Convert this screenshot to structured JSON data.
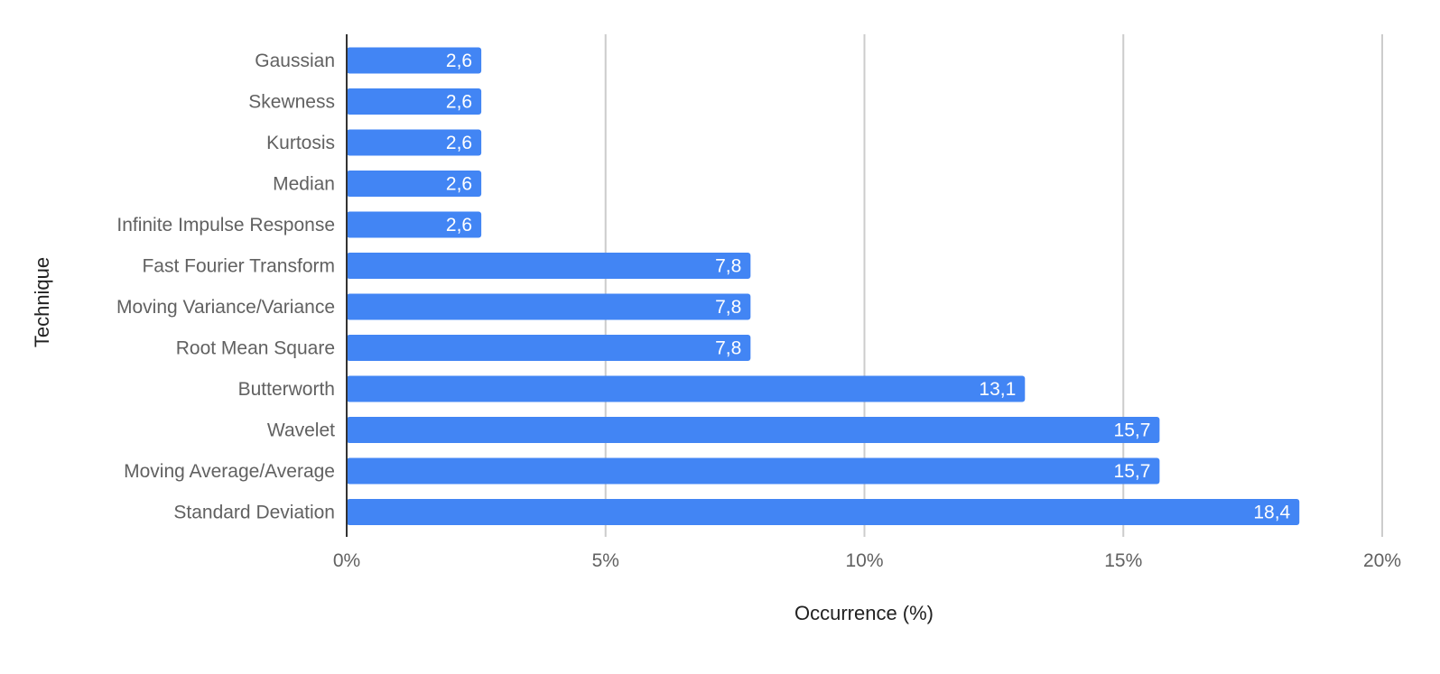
{
  "chart_data": {
    "type": "bar",
    "orientation": "horizontal",
    "categories": [
      "Gaussian",
      "Skewness",
      "Kurtosis",
      "Median",
      "Infinite Impulse Response",
      "Fast Fourier Transform",
      "Moving Variance/Variance",
      "Root Mean Square",
      "Butterworth",
      "Wavelet",
      "Moving Average/Average",
      "Standard Deviation"
    ],
    "values": [
      2.6,
      2.6,
      2.6,
      2.6,
      2.6,
      7.8,
      7.8,
      7.8,
      13.1,
      15.7,
      15.7,
      18.4
    ],
    "data_labels": [
      "2,6",
      "2,6",
      "2,6",
      "2,6",
      "2,6",
      "7,8",
      "7,8",
      "7,8",
      "13,1",
      "15,7",
      "15,7",
      "18,4"
    ],
    "title": "",
    "xlabel": "Occurrence (%)",
    "ylabel": "Technique",
    "xlim": [
      0,
      20
    ],
    "xticks": [
      0,
      5,
      10,
      15,
      20
    ],
    "xtick_labels": [
      "0%",
      "5%",
      "10%",
      "15%",
      "20%"
    ],
    "grid": "vertical",
    "legend": "none",
    "colors": {
      "bar": "#4285f4",
      "bar_label": "#ffffff",
      "category_label": "#616161",
      "tick_label": "#616161",
      "axis_title": "#212121",
      "gridline": "#cccccc",
      "axis_line": "#333333"
    }
  }
}
